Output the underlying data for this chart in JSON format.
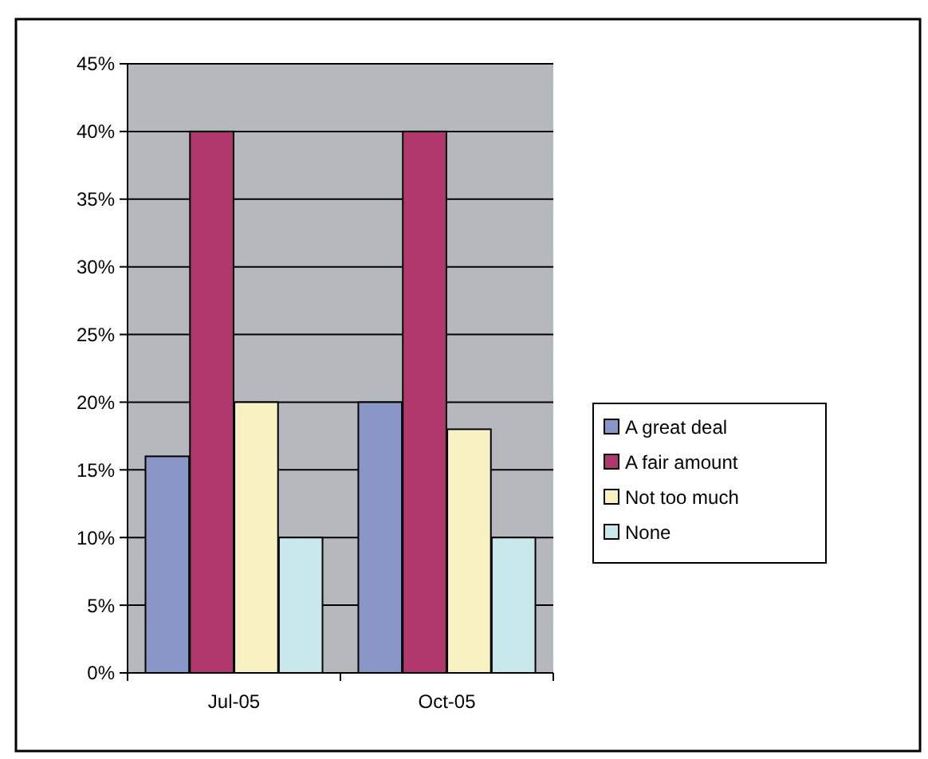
{
  "chart_data": {
    "type": "bar",
    "categories": [
      "Jul-05",
      "Oct-05"
    ],
    "series": [
      {
        "name": "A great deal",
        "color": "#8896c8",
        "values": [
          16,
          20
        ]
      },
      {
        "name": "A fair amount",
        "color": "#b0386c",
        "values": [
          40,
          40
        ]
      },
      {
        "name": "Not too much",
        "color": "#f8f2c2",
        "values": [
          20,
          18
        ]
      },
      {
        "name": "None",
        "color": "#c8e8ec",
        "values": [
          10,
          10
        ]
      }
    ],
    "ylim": [
      0,
      45
    ],
    "yticks": [
      {
        "value": 0,
        "label": "0%"
      },
      {
        "value": 5,
        "label": "5%"
      },
      {
        "value": 10,
        "label": "10%"
      },
      {
        "value": 15,
        "label": "15%"
      },
      {
        "value": 20,
        "label": "20%"
      },
      {
        "value": 25,
        "label": "25%"
      },
      {
        "value": 30,
        "label": "30%"
      },
      {
        "value": 35,
        "label": "35%"
      },
      {
        "value": 40,
        "label": "40%"
      },
      {
        "value": 45,
        "label": "45%"
      }
    ],
    "grid": "y",
    "legend": "right"
  }
}
